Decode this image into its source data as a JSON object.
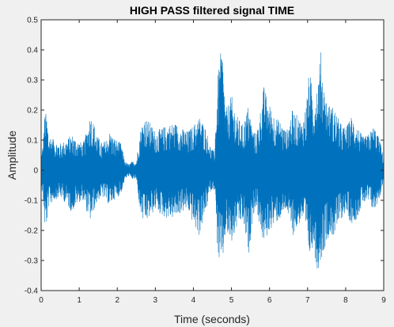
{
  "window": {
    "background": "#f0f0f0"
  },
  "chart_data": {
    "type": "line",
    "title": "HIGH PASS filtered signal TIME",
    "xlabel": "Time (seconds)",
    "ylabel": "Amplitude",
    "xlim": [
      0,
      9
    ],
    "ylim": [
      -0.4,
      0.5
    ],
    "xticks": [
      0,
      1,
      2,
      3,
      4,
      5,
      6,
      7,
      8,
      9
    ],
    "xtick_labels": [
      "0",
      "1",
      "2",
      "3",
      "4",
      "5",
      "6",
      "7",
      "8",
      "9"
    ],
    "yticks": [
      -0.4,
      -0.3,
      -0.2,
      -0.1,
      0,
      0.1,
      0.2,
      0.3,
      0.4,
      0.5
    ],
    "ytick_labels": [
      "-0.4",
      "-0.3",
      "-0.2",
      "-0.1",
      "0",
      "0.1",
      "0.2",
      "0.3",
      "0.4",
      "0.5"
    ],
    "grid": false,
    "line_color": "#0072bd",
    "series": [
      {
        "description": "approximate amplitude envelope of the filtered signal (time s, positive peak, negative peak)",
        "t": [
          0.0,
          0.05,
          0.1,
          0.15,
          0.2,
          0.35,
          0.5,
          0.65,
          0.8,
          0.95,
          1.1,
          1.2,
          1.3,
          1.4,
          1.5,
          1.6,
          1.7,
          1.8,
          1.9,
          2.0,
          2.1,
          2.2,
          2.3,
          2.4,
          2.5,
          2.6,
          2.7,
          2.85,
          3.0,
          3.15,
          3.3,
          3.5,
          3.7,
          3.85,
          4.0,
          4.15,
          4.3,
          4.45,
          4.55,
          4.65,
          4.75,
          4.85,
          5.0,
          5.15,
          5.3,
          5.45,
          5.55,
          5.65,
          5.75,
          5.85,
          6.0,
          6.15,
          6.3,
          6.45,
          6.6,
          6.75,
          6.85,
          6.95,
          7.05,
          7.15,
          7.25,
          7.35,
          7.45,
          7.55,
          7.7,
          7.85,
          8.0,
          8.15,
          8.3,
          8.45,
          8.6,
          8.75,
          8.9,
          9.0
        ],
        "upper": [
          0.05,
          0.09,
          0.2,
          0.18,
          0.12,
          0.1,
          0.09,
          0.1,
          0.12,
          0.1,
          0.09,
          0.13,
          0.19,
          0.15,
          0.11,
          0.09,
          0.1,
          0.13,
          0.11,
          0.1,
          0.09,
          0.03,
          0.02,
          0.03,
          0.03,
          0.13,
          0.18,
          0.16,
          0.13,
          0.14,
          0.15,
          0.16,
          0.14,
          0.13,
          0.15,
          0.18,
          0.15,
          0.08,
          0.06,
          0.33,
          0.42,
          0.2,
          0.25,
          0.18,
          0.15,
          0.22,
          0.14,
          0.12,
          0.19,
          0.28,
          0.22,
          0.18,
          0.16,
          0.13,
          0.2,
          0.18,
          0.16,
          0.21,
          0.34,
          0.24,
          0.29,
          0.4,
          0.26,
          0.22,
          0.21,
          0.16,
          0.14,
          0.18,
          0.15,
          0.11,
          0.12,
          0.15,
          0.1,
          0.04
        ],
        "lower": [
          -0.04,
          -0.1,
          -0.2,
          -0.18,
          -0.12,
          -0.1,
          -0.09,
          -0.11,
          -0.14,
          -0.11,
          -0.1,
          -0.14,
          -0.17,
          -0.13,
          -0.1,
          -0.09,
          -0.1,
          -0.12,
          -0.1,
          -0.09,
          -0.08,
          -0.03,
          -0.02,
          -0.03,
          -0.03,
          -0.14,
          -0.18,
          -0.16,
          -0.13,
          -0.15,
          -0.16,
          -0.16,
          -0.14,
          -0.13,
          -0.18,
          -0.22,
          -0.15,
          -0.07,
          -0.06,
          -0.3,
          -0.33,
          -0.21,
          -0.25,
          -0.19,
          -0.17,
          -0.29,
          -0.16,
          -0.12,
          -0.19,
          -0.25,
          -0.2,
          -0.18,
          -0.16,
          -0.13,
          -0.22,
          -0.19,
          -0.16,
          -0.22,
          -0.29,
          -0.25,
          -0.34,
          -0.3,
          -0.26,
          -0.22,
          -0.22,
          -0.17,
          -0.14,
          -0.18,
          -0.16,
          -0.11,
          -0.11,
          -0.14,
          -0.09,
          -0.03
        ]
      }
    ]
  }
}
